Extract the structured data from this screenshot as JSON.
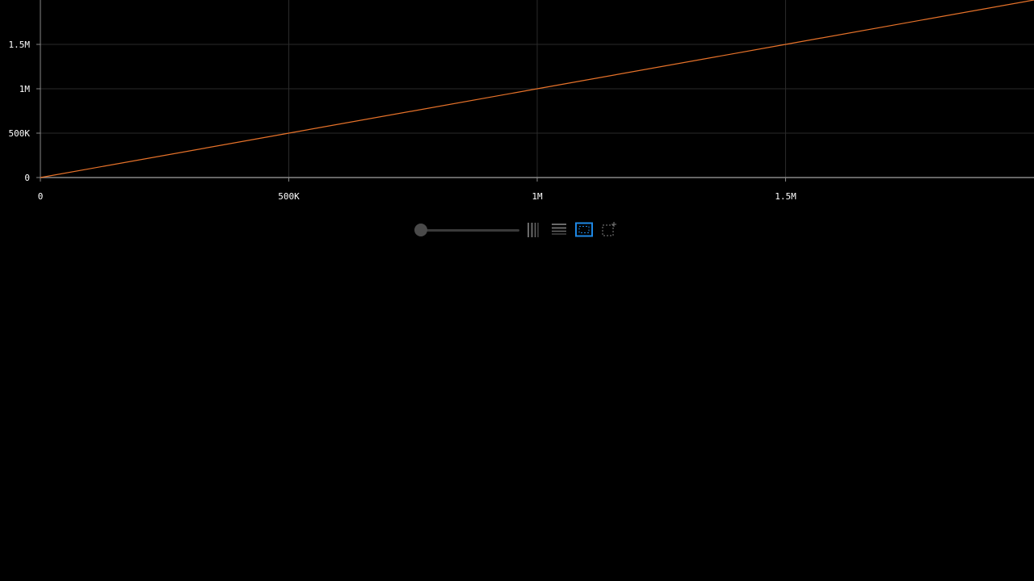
{
  "chart_data": {
    "type": "line",
    "title": "",
    "xlabel": "",
    "ylabel": "",
    "xlim": [
      0,
      2000000
    ],
    "ylim": [
      0,
      2000000
    ],
    "grid": true,
    "x_ticks": [
      {
        "value": 0,
        "label": "0"
      },
      {
        "value": 500000,
        "label": "500K"
      },
      {
        "value": 1000000,
        "label": "1M"
      },
      {
        "value": 1500000,
        "label": "1.5M"
      }
    ],
    "y_ticks": [
      {
        "value": 0,
        "label": "0"
      },
      {
        "value": 500000,
        "label": "500K"
      },
      {
        "value": 1000000,
        "label": "1M"
      },
      {
        "value": 1500000,
        "label": "1.5M"
      }
    ],
    "series": [
      {
        "color": "#e8732a",
        "points": [
          [
            0,
            0
          ],
          [
            500000,
            500000
          ],
          [
            1000000,
            1000000
          ],
          [
            1500000,
            1500000
          ],
          [
            2000000,
            2000000
          ]
        ]
      }
    ]
  },
  "toolbar": {
    "zoom_level": 0,
    "tools": [
      {
        "icon": "vertical-bars-icon",
        "active": false
      },
      {
        "icon": "horizontal-lines-icon",
        "active": false
      },
      {
        "icon": "box-select-icon",
        "active": true
      },
      {
        "icon": "box-select-add-icon",
        "active": false
      }
    ],
    "active_color": "#1e88e5",
    "inactive_color": "#6a6a6a"
  }
}
